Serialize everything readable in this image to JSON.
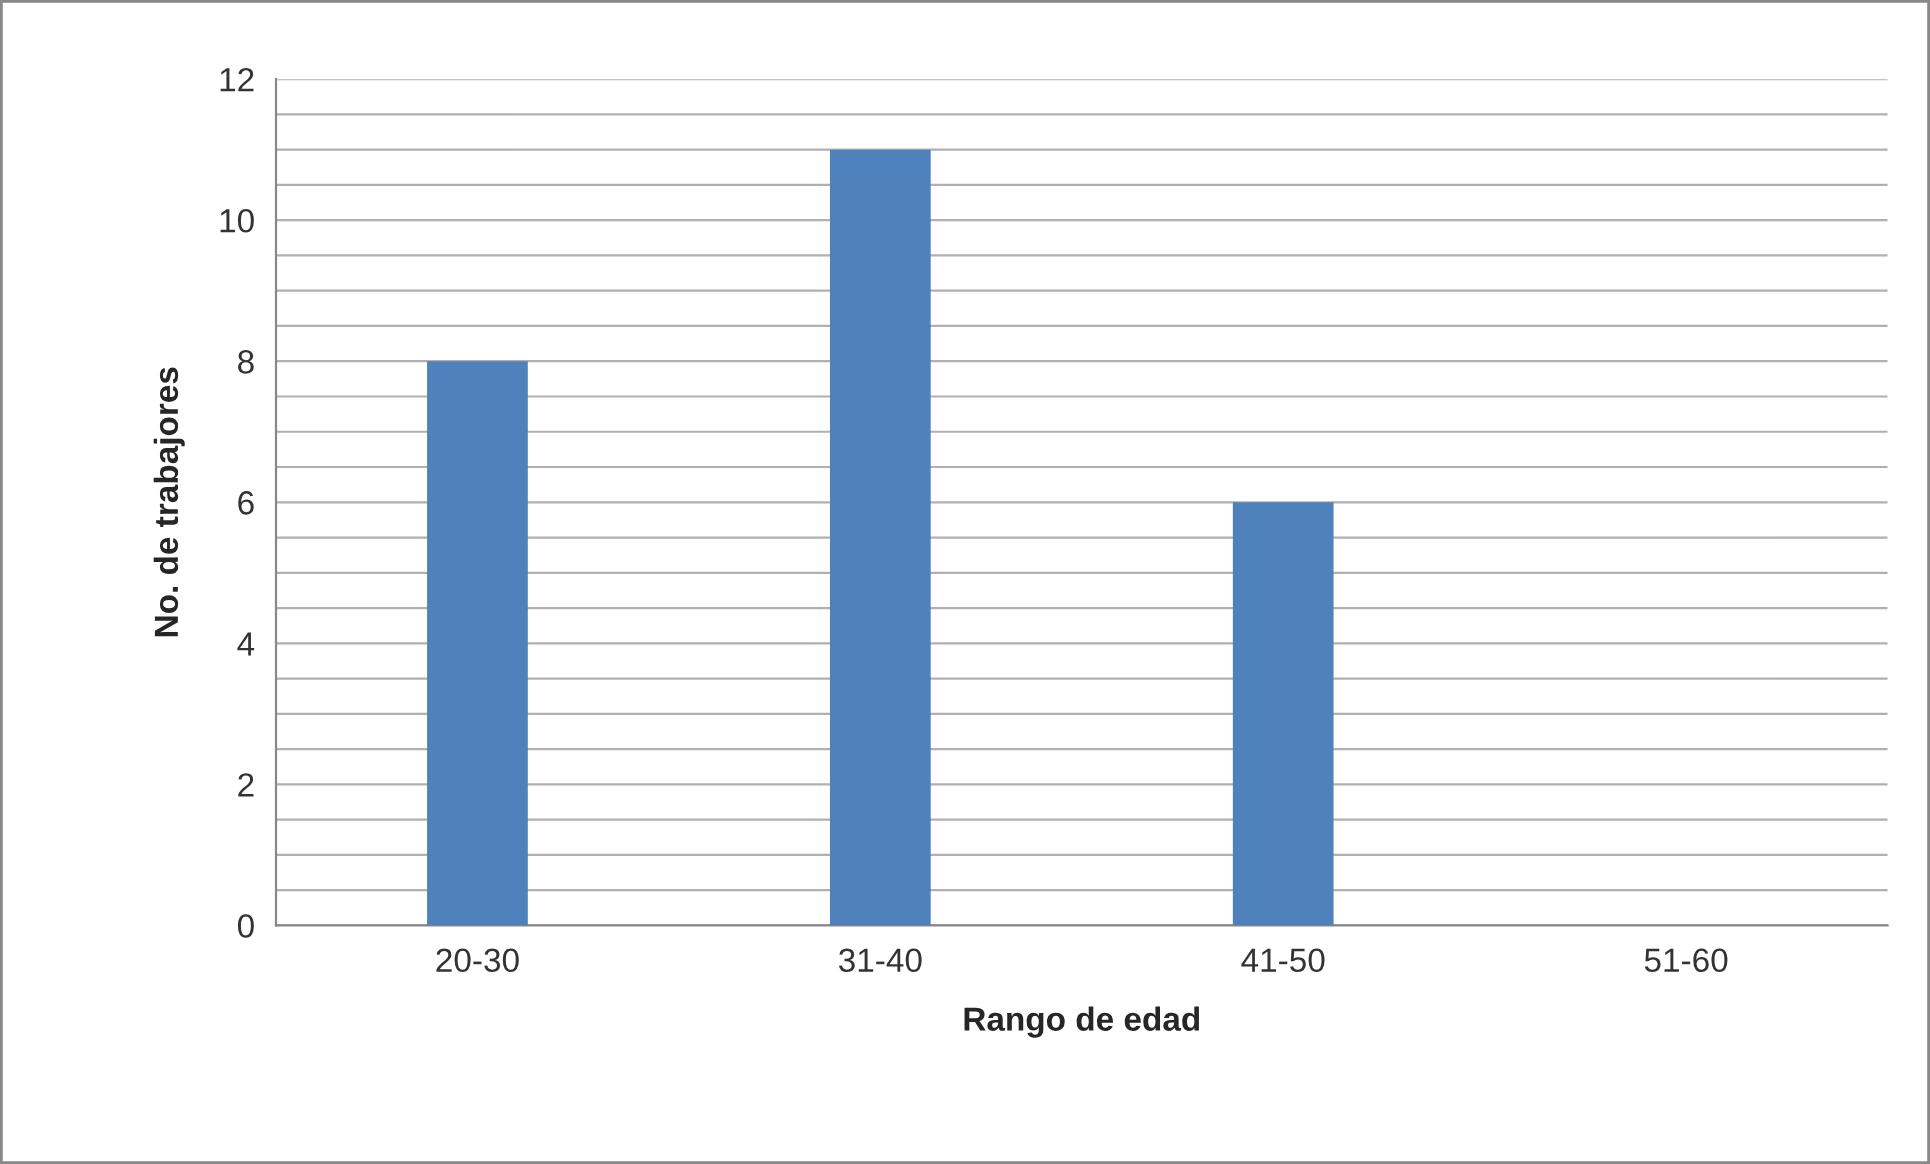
{
  "chart_data": {
    "type": "bar",
    "xlabel": "Rango de edad",
    "ylabel": "No. de trabajores",
    "categories": [
      "20-30",
      "31-40",
      "41-50",
      "51-60"
    ],
    "values": [
      8,
      11,
      6,
      0
    ],
    "color": "#4f81bd",
    "ylim": [
      0,
      12
    ],
    "yticks": [
      0,
      {
        "value": 0.5,
        "label": null
      },
      {
        "value": 1,
        "label": null
      },
      {
        "value": 1.5,
        "label": null
      },
      2,
      {
        "value": 2.5,
        "label": null
      },
      {
        "value": 3,
        "label": null
      },
      {
        "value": 3.5,
        "label": null
      },
      4,
      {
        "value": 4.5,
        "label": null
      },
      {
        "value": 5,
        "label": null
      },
      {
        "value": 5.5,
        "label": null
      },
      6,
      {
        "value": 6.5,
        "label": null
      },
      {
        "value": 7,
        "label": null
      },
      {
        "value": 7.5,
        "label": null
      },
      8,
      {
        "value": 8.5,
        "label": null
      },
      {
        "value": 9,
        "label": null
      },
      {
        "value": 9.5,
        "label": null
      },
      10,
      {
        "value": 10.5,
        "label": null
      },
      {
        "value": 11,
        "label": null
      },
      {
        "value": 11.5,
        "label": null
      },
      12
    ],
    "grid": "y",
    "legend": false
  }
}
